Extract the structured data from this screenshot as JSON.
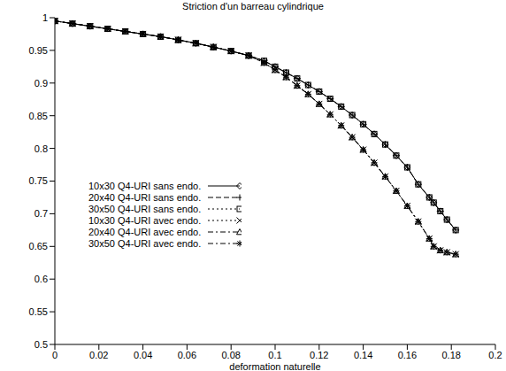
{
  "chart_data": {
    "type": "line",
    "title": "Striction d'un barreau cylindrique",
    "x_label": "deformation naturelle",
    "legend": "left",
    "grid": false,
    "xlim": [
      0,
      0.2
    ],
    "xticks": [
      0,
      0.02,
      0.04,
      0.06,
      0.08,
      0.1,
      0.12,
      0.14,
      0.16,
      0.18,
      0.2
    ],
    "ylim": [
      0.5,
      1
    ],
    "yticks": [
      0.5,
      0.55,
      0.6,
      0.65,
      0.7,
      0.75,
      0.8,
      0.85,
      0.9,
      0.95,
      1
    ],
    "x": [
      0,
      0.008,
      0.016,
      0.024,
      0.032,
      0.04,
      0.048,
      0.056,
      0.064,
      0.072,
      0.08,
      0.088,
      0.095,
      0.1,
      0.105,
      0.11,
      0.115,
      0.12,
      0.125,
      0.13,
      0.135,
      0.14,
      0.145,
      0.15,
      0.155,
      0.16,
      0.165,
      0.17,
      0.172,
      0.175,
      0.178,
      0.182
    ],
    "series": [
      {
        "name": "10x30 Q4-URI sans endo.",
        "color": "#000000",
        "marker": "diamond",
        "line_style": "solid",
        "values": [
          0.995,
          0.991,
          0.987,
          0.983,
          0.979,
          0.975,
          0.971,
          0.966,
          0.961,
          0.955,
          0.949,
          0.942,
          0.934,
          0.925,
          0.916,
          0.907,
          0.897,
          0.887,
          0.876,
          0.864,
          0.851,
          0.837,
          0.822,
          0.806,
          0.789,
          0.771,
          0.745,
          0.725,
          0.717,
          0.704,
          0.691,
          0.675
        ]
      },
      {
        "name": "20x40 Q4-URI sans endo.",
        "color": "#000000",
        "marker": "plus",
        "line_style": "dashed",
        "values": [
          0.995,
          0.991,
          0.987,
          0.983,
          0.979,
          0.975,
          0.971,
          0.966,
          0.961,
          0.955,
          0.949,
          0.942,
          0.934,
          0.925,
          0.916,
          0.907,
          0.897,
          0.887,
          0.876,
          0.864,
          0.851,
          0.837,
          0.822,
          0.806,
          0.789,
          0.771,
          0.745,
          0.725,
          0.717,
          0.704,
          0.691,
          0.675
        ]
      },
      {
        "name": "30x50 Q4-URI sans endo.",
        "color": "#000000",
        "marker": "square",
        "line_style": "dotted",
        "values": [
          0.995,
          0.991,
          0.987,
          0.983,
          0.979,
          0.975,
          0.971,
          0.966,
          0.961,
          0.955,
          0.949,
          0.942,
          0.934,
          0.925,
          0.916,
          0.907,
          0.897,
          0.887,
          0.876,
          0.864,
          0.851,
          0.837,
          0.822,
          0.806,
          0.789,
          0.771,
          0.745,
          0.725,
          0.717,
          0.704,
          0.691,
          0.675
        ]
      },
      {
        "name": "10x30 Q4-URI avec endo.",
        "color": "#000000",
        "marker": "x",
        "line_style": "dotted",
        "values": [
          0.995,
          0.991,
          0.987,
          0.983,
          0.979,
          0.975,
          0.971,
          0.966,
          0.961,
          0.955,
          0.949,
          0.942,
          0.931,
          0.92,
          0.909,
          0.896,
          0.883,
          0.868,
          0.852,
          0.835,
          0.817,
          0.798,
          0.778,
          0.757,
          0.735,
          0.712,
          0.688,
          0.662,
          0.65,
          0.644,
          0.641,
          0.638
        ]
      },
      {
        "name": "20x40 Q4-URI avec endo.",
        "color": "#000000",
        "marker": "triangle",
        "line_style": "dash-dot",
        "values": [
          0.995,
          0.991,
          0.987,
          0.983,
          0.979,
          0.975,
          0.971,
          0.966,
          0.961,
          0.955,
          0.949,
          0.942,
          0.931,
          0.92,
          0.909,
          0.896,
          0.883,
          0.868,
          0.852,
          0.835,
          0.817,
          0.798,
          0.778,
          0.757,
          0.735,
          0.712,
          0.688,
          0.662,
          0.65,
          0.644,
          0.641,
          0.638
        ]
      },
      {
        "name": "30x50 Q4-URI avec endo.",
        "color": "#000000",
        "marker": "star",
        "line_style": "dash-dot",
        "values": [
          0.995,
          0.991,
          0.987,
          0.983,
          0.979,
          0.975,
          0.971,
          0.966,
          0.961,
          0.955,
          0.949,
          0.942,
          0.931,
          0.92,
          0.909,
          0.896,
          0.883,
          0.868,
          0.852,
          0.835,
          0.817,
          0.798,
          0.778,
          0.757,
          0.735,
          0.712,
          0.688,
          0.662,
          0.65,
          0.644,
          0.641,
          0.638
        ]
      }
    ]
  }
}
